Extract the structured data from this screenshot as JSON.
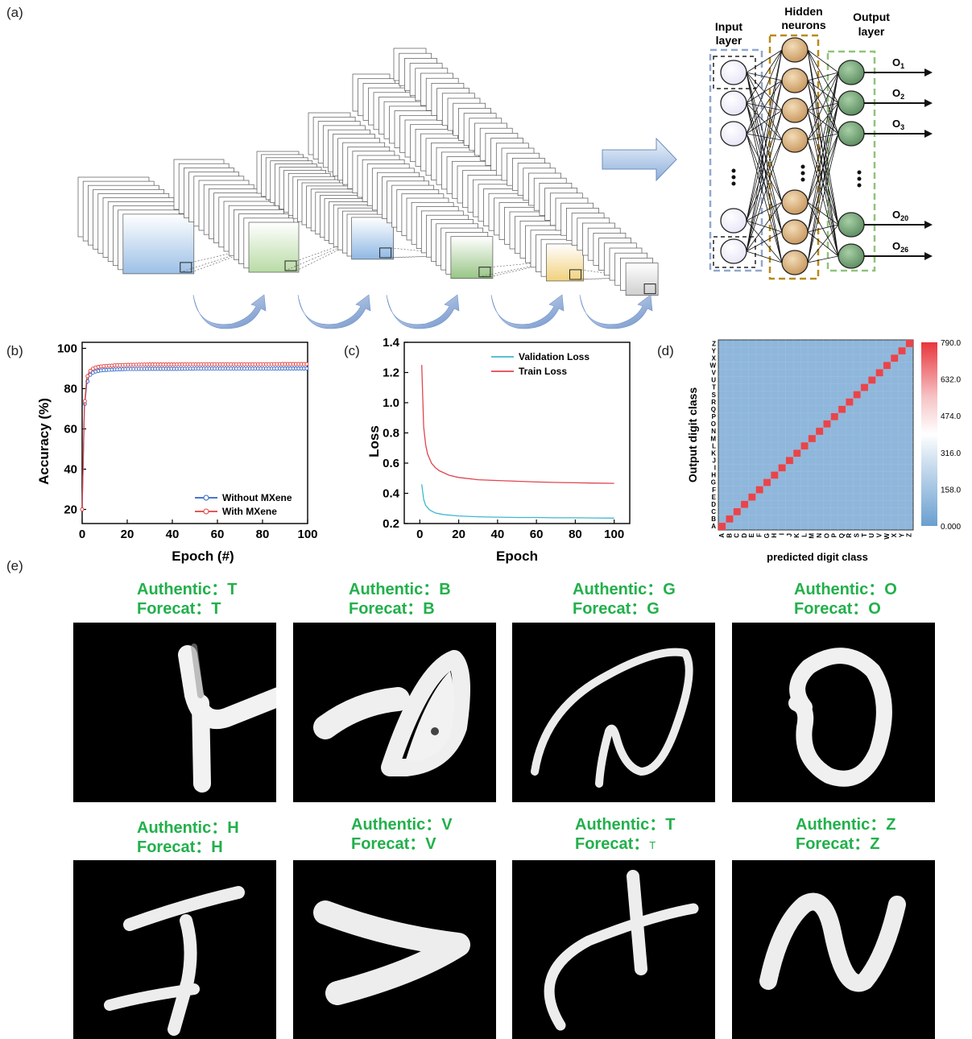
{
  "panel_labels": {
    "a": "(a)",
    "b": "(b)",
    "c": "(c)",
    "d": "(d)",
    "e": "(e)"
  },
  "network": {
    "input_label": [
      "Input",
      "layer"
    ],
    "hidden_label": [
      "Hidden",
      "neurons"
    ],
    "output_label": [
      "Output",
      "layer"
    ],
    "outputs": [
      {
        "base": "O",
        "sub": "1"
      },
      {
        "base": "O",
        "sub": "2"
      },
      {
        "base": "O",
        "sub": "3"
      },
      {
        "base": "O",
        "sub": "20"
      },
      {
        "base": "O",
        "sub": "26"
      }
    ],
    "colors": {
      "input": "#e6e4f6",
      "hidden": "#c7955a",
      "output": "#5a8a5e",
      "input_box": "#8fa8d0",
      "hidden_box": "#b88a1a",
      "output_box": "#8fc47a"
    }
  },
  "cnn_colors": [
    "#a9c8e8",
    "#b8d8a8",
    "#9cc0e4",
    "#9cc88a",
    "#f2d488",
    "#d0d0d0"
  ],
  "chart_data": [
    {
      "id": "b",
      "type": "line",
      "xlabel": "Epoch (#)",
      "ylabel": "Accuracy (%)",
      "xlim": [
        0,
        100
      ],
      "ylim": [
        13,
        103
      ],
      "xticks": [
        0,
        20,
        40,
        60,
        80,
        100
      ],
      "yticks": [
        20,
        40,
        60,
        80,
        100
      ],
      "legend_position": "bottom-right",
      "series": [
        {
          "name": "Without MXene",
          "color": "#2f63c8",
          "x": [
            0,
            1,
            2,
            3,
            4,
            5,
            6,
            8,
            10,
            15,
            20,
            30,
            40,
            50,
            60,
            70,
            80,
            90,
            100
          ],
          "y": [
            20,
            70,
            82,
            86,
            87.5,
            88,
            88.5,
            89,
            89.2,
            89.5,
            89.7,
            89.8,
            89.8,
            89.9,
            89.9,
            89.9,
            89.9,
            90,
            90
          ]
        },
        {
          "name": "With MXene",
          "color": "#e04040",
          "x": [
            0,
            1,
            2,
            3,
            4,
            5,
            6,
            8,
            10,
            15,
            20,
            30,
            40,
            50,
            60,
            70,
            80,
            90,
            100
          ],
          "y": [
            20,
            71,
            85,
            88,
            89.5,
            90,
            90.5,
            91,
            91.2,
            91.6,
            91.8,
            92,
            92,
            92.1,
            92.1,
            92.1,
            92.1,
            92.2,
            92.2
          ]
        }
      ]
    },
    {
      "id": "c",
      "type": "line",
      "xlabel": "Epoch",
      "ylabel": "Loss",
      "xlim": [
        -8,
        108
      ],
      "ylim": [
        0.2,
        1.4
      ],
      "xticks": [
        0,
        20,
        40,
        60,
        80,
        100
      ],
      "yticks": [
        0.2,
        0.4,
        0.6,
        0.8,
        1.0,
        1.2,
        1.4
      ],
      "ytick_labels": [
        "0.2",
        "0.4",
        "0.6",
        "0.8",
        "1.0",
        "1.2",
        "1.4"
      ],
      "legend_position": "top-right",
      "series": [
        {
          "name": "Validation Loss",
          "color": "#3fb8cf",
          "x": [
            1,
            2,
            3,
            5,
            8,
            12,
            20,
            30,
            40,
            50,
            60,
            70,
            80,
            90,
            100
          ],
          "y": [
            0.46,
            0.36,
            0.32,
            0.29,
            0.27,
            0.26,
            0.25,
            0.245,
            0.242,
            0.24,
            0.24,
            0.238,
            0.238,
            0.237,
            0.236
          ]
        },
        {
          "name": "Train Loss",
          "color": "#e0454f",
          "x": [
            1,
            2,
            3,
            4,
            6,
            8,
            10,
            15,
            20,
            30,
            40,
            50,
            60,
            70,
            80,
            90,
            100
          ],
          "y": [
            1.25,
            0.84,
            0.72,
            0.66,
            0.6,
            0.57,
            0.55,
            0.52,
            0.505,
            0.49,
            0.485,
            0.48,
            0.475,
            0.472,
            0.47,
            0.468,
            0.466
          ]
        }
      ]
    },
    {
      "id": "d",
      "type": "heatmap",
      "xlabel": "predicted digit class",
      "ylabel": "Output digit class",
      "classes": [
        "A",
        "B",
        "C",
        "D",
        "E",
        "F",
        "G",
        "H",
        "I",
        "J",
        "K",
        "L",
        "M",
        "N",
        "O",
        "P",
        "Q",
        "R",
        "S",
        "T",
        "U",
        "V",
        "W",
        "X",
        "Y",
        "Z"
      ],
      "colorbar_ticks": [
        "0.000",
        "158.0",
        "316.0",
        "474.0",
        "632.0",
        "790.0"
      ],
      "range": [
        0,
        790
      ],
      "diagonal_value": 760,
      "off_diagonal_value": 0
    }
  ],
  "samples": [
    {
      "authentic": "Authentic：T",
      "forecast": "Forecat：T"
    },
    {
      "authentic": "Authentic：B",
      "forecast": "Forecat：B"
    },
    {
      "authentic": "Authentic：G",
      "forecast": "Forecat：G"
    },
    {
      "authentic": "Authentic：O",
      "forecast": "Forecat：O"
    },
    {
      "authentic": "Authentic：H",
      "forecast": "Forecat：H"
    },
    {
      "authentic": "Authentic：V",
      "forecast": "Forecat：V"
    },
    {
      "authentic": "Authentic：T",
      "forecast_prefix": "Forecat：",
      "forecast_small": "T"
    },
    {
      "authentic": "Authentic：Z",
      "forecast": "Forecat：Z"
    }
  ]
}
